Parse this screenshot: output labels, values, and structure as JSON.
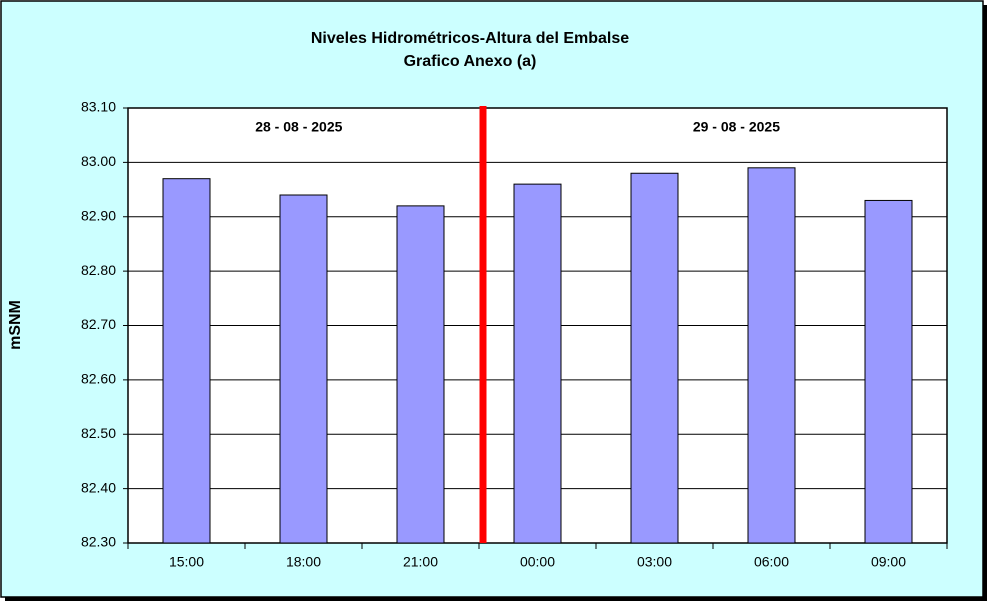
{
  "chart_data": {
    "type": "bar",
    "title": "Niveles Hidrométricos-Altura del Embalse",
    "subtitle": "Grafico Anexo (a)",
    "y_label": "mSNM",
    "annotations": [
      "28 - 08 - 2025",
      "29 - 08 - 2025"
    ],
    "categories": [
      "15:00",
      "18:00",
      "21:00",
      "00:00",
      "03:00",
      "06:00",
      "09:00"
    ],
    "values": [
      82.97,
      82.94,
      82.92,
      82.96,
      82.98,
      82.99,
      82.93
    ],
    "color": "#9999ff",
    "ylim": [
      82.3,
      83.1
    ],
    "yticks": [
      {
        "value": 82.3,
        "label": "82.30"
      },
      {
        "value": 82.4,
        "label": "82.40"
      },
      {
        "value": 82.5,
        "label": "82.50"
      },
      {
        "value": 82.6,
        "label": "82.60"
      },
      {
        "value": 82.7,
        "label": "82.70"
      },
      {
        "value": 82.8,
        "label": "82.80"
      },
      {
        "value": 82.9,
        "label": "82.90"
      },
      {
        "value": 83.0,
        "label": "83.00"
      },
      {
        "value": 83.1,
        "label": "83.10"
      }
    ],
    "grid": true
  }
}
